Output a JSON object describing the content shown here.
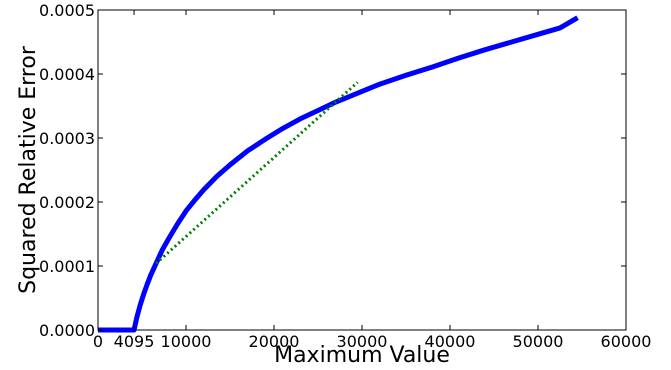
{
  "chart_data": {
    "type": "line",
    "title": "",
    "xlabel": "Maximum Value",
    "ylabel": "Squared Relative Error",
    "xlim": [
      0,
      60000
    ],
    "ylim": [
      0,
      0.0005
    ],
    "grid": false,
    "x_ticks": [
      {
        "value": 0,
        "label": "0"
      },
      {
        "value": 4095,
        "label": "4095"
      },
      {
        "value": 10000,
        "label": "10000"
      },
      {
        "value": 20000,
        "label": "20000"
      },
      {
        "value": 30000,
        "label": "30000"
      },
      {
        "value": 40000,
        "label": "40000"
      },
      {
        "value": 50000,
        "label": "50000"
      },
      {
        "value": 60000,
        "label": "60000"
      }
    ],
    "y_ticks": [
      {
        "value": 0,
        "label": "0.0000"
      },
      {
        "value": 0.0001,
        "label": "0.0001"
      },
      {
        "value": 0.0002,
        "label": "0.0002"
      },
      {
        "value": 0.0003,
        "label": "0.0003"
      },
      {
        "value": 0.0004,
        "label": "0.0004"
      },
      {
        "value": 0.0005,
        "label": "0.0005"
      }
    ],
    "series": [
      {
        "style": "solid",
        "color": "#0000ff",
        "x": [
          0,
          4095,
          4400,
          4800,
          5200,
          5600,
          6000,
          6600,
          7300,
          8000,
          9000,
          10000,
          11000,
          12000,
          13500,
          15000,
          17000,
          19000,
          21000,
          23000,
          25000,
          27000,
          29500,
          32000,
          35000,
          38000,
          41000,
          44000,
          47000,
          50000,
          52500,
          54500
        ],
        "y": [
          0,
          0,
          1.9e-05,
          3.93e-05,
          5.64e-05,
          7.18e-05,
          8.6e-05,
          0.000104,
          0.000125,
          0.000142,
          0.000165,
          0.000186,
          0.000203,
          0.000219,
          0.00024,
          0.000258,
          0.00028,
          0.000298,
          0.000315,
          0.00033,
          0.000343,
          0.000356,
          0.00037,
          0.000384,
          0.000398,
          0.000411,
          0.000425,
          0.000438,
          0.00045,
          0.000462,
          0.000472,
          0.000488
        ]
      },
      {
        "style": "dotted",
        "color": "#008000",
        "x": [
          6600,
          29500
        ],
        "y": [
          0.000104,
          0.000387
        ]
      }
    ]
  }
}
